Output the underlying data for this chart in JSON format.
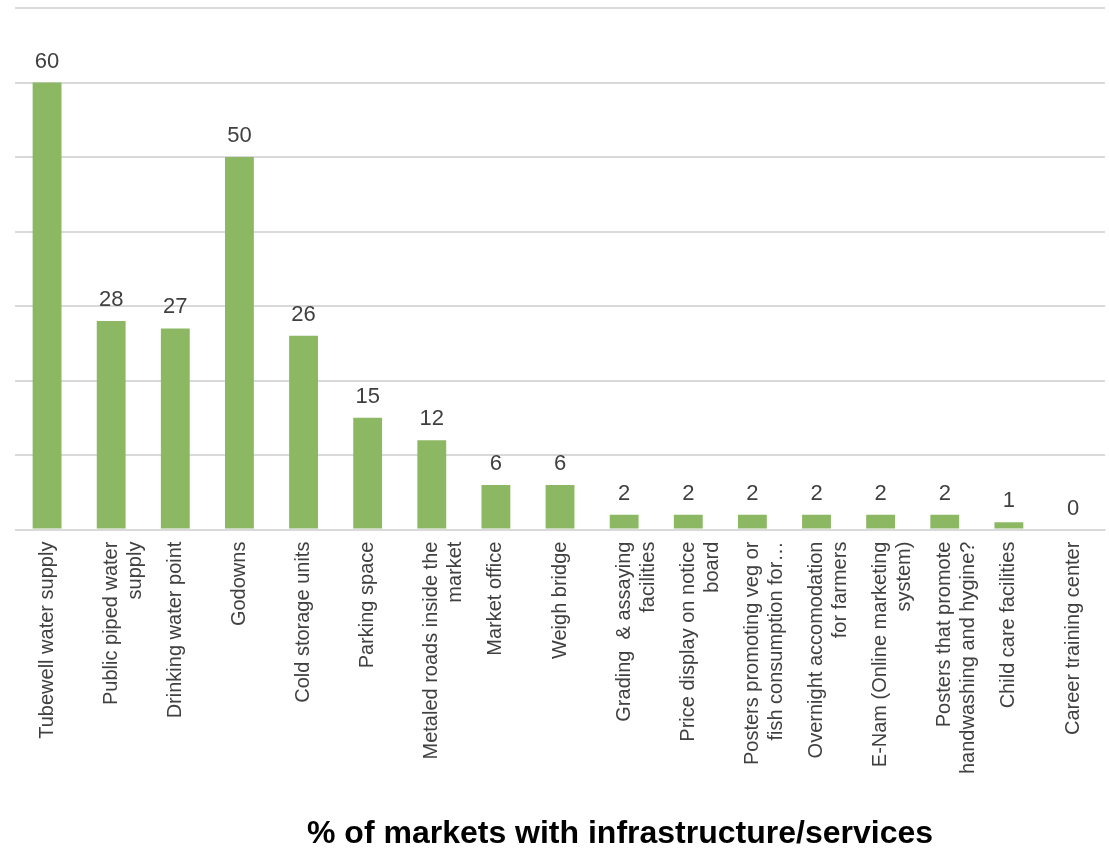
{
  "chart_data": {
    "type": "bar",
    "title": "% of markets with infrastructure/services",
    "categories": [
      "Tubewell water supply",
      "Public piped water supply",
      "Drinking water point",
      "Godowns",
      "Cold storage units",
      "Parking space",
      "Metaled roads inside the market",
      "Market office",
      "Weigh bridge",
      "Grading  & assaying facilities",
      "Price display on notice board",
      "Posters promoting veg or fish consumption for…",
      "Overnight accomodation for farmers",
      "E-Nam (Online marketing system)",
      "Posters that promote handwashing and hygine?",
      "Child care facilities",
      "Career training center"
    ],
    "values": [
      60,
      28,
      27,
      50,
      26,
      15,
      12,
      6,
      6,
      2,
      2,
      2,
      2,
      2,
      2,
      1,
      0
    ],
    "color": "#8cb864",
    "data_labels": true,
    "ylim": [
      0,
      70
    ],
    "yticks": [
      {
        "value": 0,
        "label": null
      },
      {
        "value": 10,
        "label": null
      },
      {
        "value": 20,
        "label": null
      },
      {
        "value": 30,
        "label": null
      },
      {
        "value": 40,
        "label": null
      },
      {
        "value": 50,
        "label": null
      },
      {
        "value": 60,
        "label": null
      },
      {
        "value": 70,
        "label": null
      }
    ],
    "grid": "y",
    "tick_labels": "x"
  }
}
